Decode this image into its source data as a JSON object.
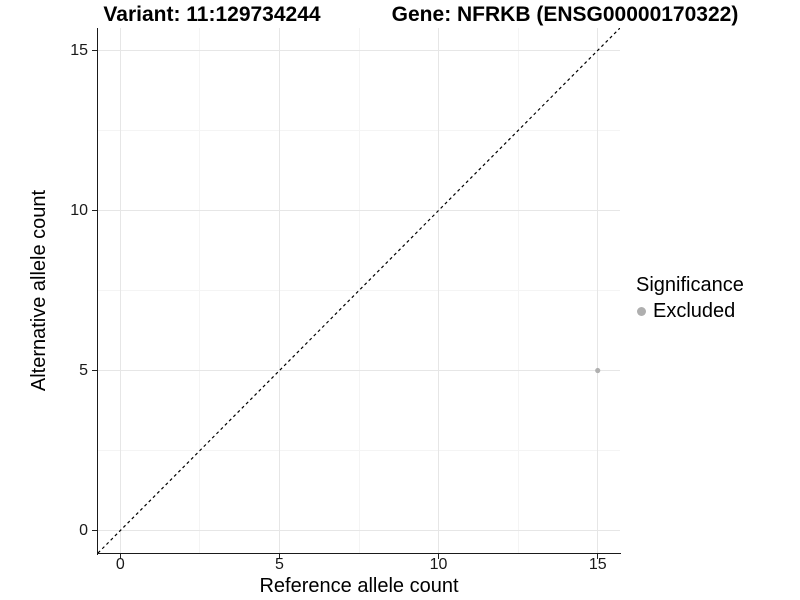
{
  "titles": {
    "variant": "Variant: 11:129734244",
    "gene": "Gene: NFRKB (ENSG00000170322)"
  },
  "chart_data": {
    "type": "scatter",
    "title": "Variant: 11:129734244   Gene: NFRKB (ENSG00000170322)",
    "xlabel": "Reference allele count",
    "ylabel": "Alternative allele count",
    "xlim": [
      -0.7,
      15.7
    ],
    "ylim": [
      -0.7,
      15.7
    ],
    "x_ticks": [
      0,
      5,
      10,
      15
    ],
    "y_ticks": [
      0,
      5,
      10,
      15
    ],
    "x_minor": [
      2.5,
      7.5,
      12.5
    ],
    "y_minor": [
      2.5,
      7.5,
      12.5
    ],
    "grid": true,
    "aspect": "equal",
    "points": [
      {
        "x": 15,
        "y": 5,
        "series": "Excluded",
        "color": "#b0b0b0",
        "radius": 2.6
      }
    ],
    "reference_line": {
      "kind": "identity y=x",
      "style": "dashed",
      "color": "#000000",
      "from": [
        -0.7,
        -0.7
      ],
      "to": [
        15.7,
        15.7
      ]
    },
    "legend": {
      "title": "Significance",
      "position": "right",
      "entries": [
        {
          "label": "Excluded",
          "marker": "circle",
          "color": "#afafaf"
        }
      ]
    }
  },
  "colors": {
    "background": "#ffffff",
    "grid_major": "#e6e6e6",
    "grid_minor": "#f4f4f4",
    "axis_line": "#1a1a1a",
    "tick_mark": "#222222",
    "text": "#000000"
  }
}
